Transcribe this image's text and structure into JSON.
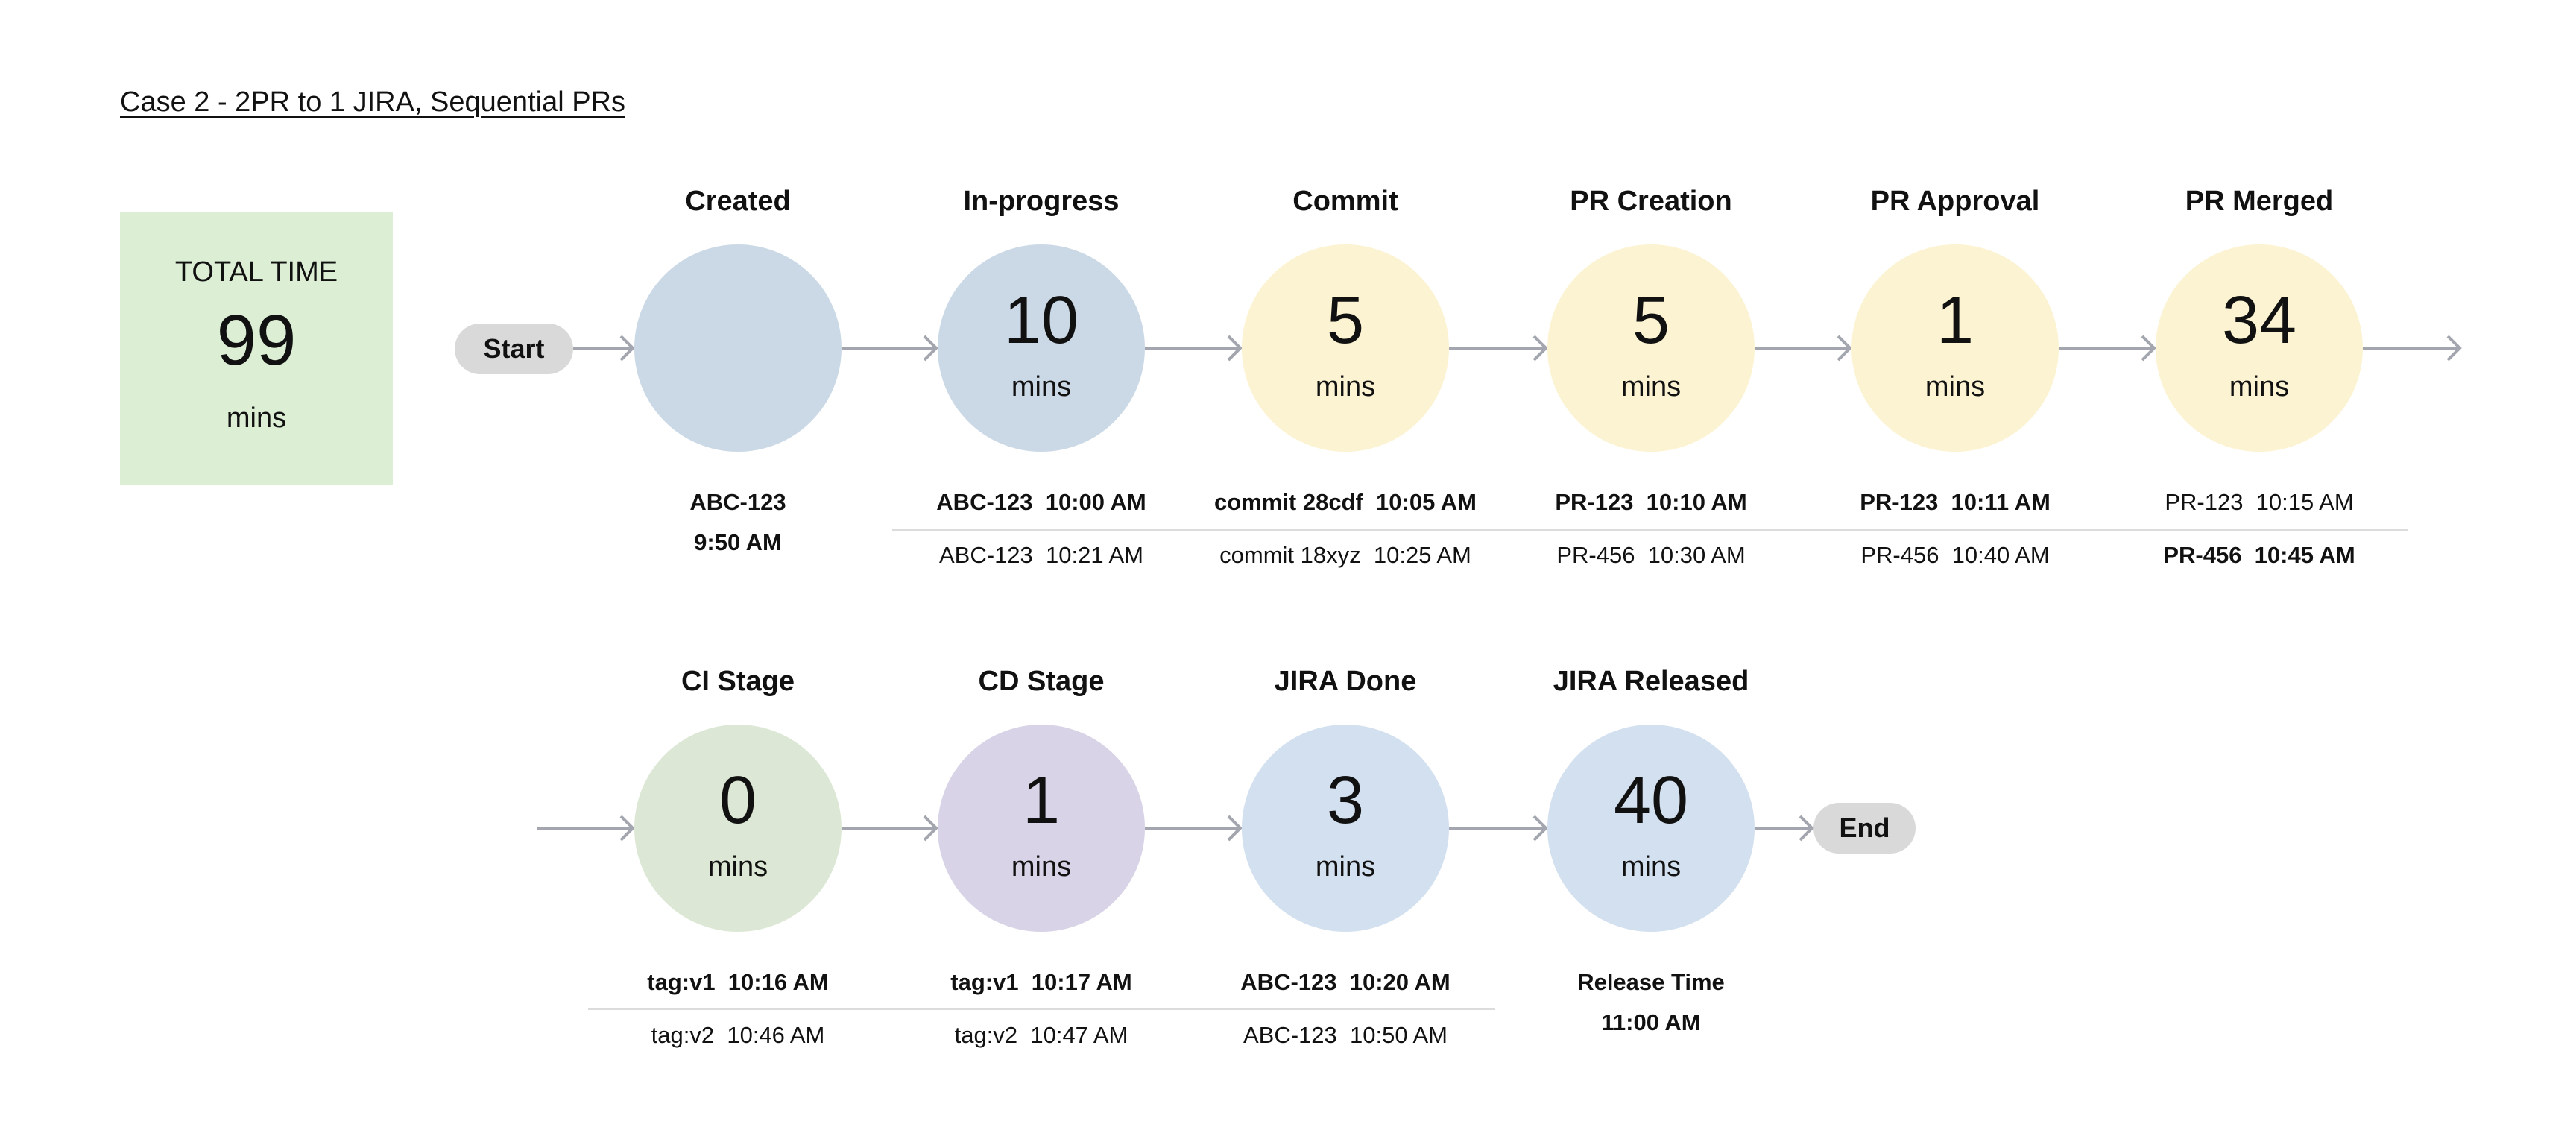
{
  "title": "Case 2 - 2PR to 1 JIRA, Sequential PRs",
  "total": {
    "label": "TOTAL TIME",
    "value": "99",
    "unit": "mins",
    "color": "#dcefd5"
  },
  "start_label": "Start",
  "end_label": "End",
  "colors": {
    "arrow": "#a3a6ae",
    "pill": "#d9d9d9",
    "separator": "#dcdcdc"
  },
  "stages": [
    {
      "title": "Created",
      "value": "",
      "unit": "",
      "color": "#cbd9e6",
      "details": [
        {
          "text": "ABC-123",
          "bold": true
        },
        {
          "text": "9:50 AM",
          "bold": true
        }
      ]
    },
    {
      "title": "In-progress",
      "value": "10",
      "unit": "mins",
      "color": "#cbd9e6",
      "details": [
        {
          "text": "ABC-123  10:00 AM",
          "bold": true
        },
        {
          "text": "ABC-123  10:21 AM",
          "bold": false
        }
      ]
    },
    {
      "title": "Commit",
      "value": "5",
      "unit": "mins",
      "color": "#fcf3d2",
      "details": [
        {
          "text": "commit 28cdf  10:05 AM",
          "bold": true
        },
        {
          "text": "commit 18xyz  10:25 AM",
          "bold": false
        }
      ]
    },
    {
      "title": "PR Creation",
      "value": "5",
      "unit": "mins",
      "color": "#fcf3d2",
      "details": [
        {
          "text": "PR-123  10:10 AM",
          "bold": true
        },
        {
          "text": "PR-456  10:30 AM",
          "bold": false
        }
      ]
    },
    {
      "title": "PR Approval",
      "value": "1",
      "unit": "mins",
      "color": "#fcf3d2",
      "details": [
        {
          "text": "PR-123  10:11 AM",
          "bold": true
        },
        {
          "text": "PR-456  10:40 AM",
          "bold": false
        }
      ]
    },
    {
      "title": "PR Merged",
      "value": "34",
      "unit": "mins",
      "color": "#fcf3d2",
      "details": [
        {
          "text": "PR-123  10:15 AM",
          "bold": false
        },
        {
          "text": "PR-456  10:45 AM",
          "bold": true
        }
      ]
    },
    {
      "title": "CI Stage",
      "value": "0",
      "unit": "mins",
      "color": "#dce8d5",
      "details": [
        {
          "text": "tag:v1  10:16 AM",
          "bold": true
        },
        {
          "text": "tag:v2  10:46 AM",
          "bold": false
        }
      ]
    },
    {
      "title": "CD Stage",
      "value": "1",
      "unit": "mins",
      "color": "#d8d3e6",
      "details": [
        {
          "text": "tag:v1  10:17 AM",
          "bold": true
        },
        {
          "text": "tag:v2  10:47 AM",
          "bold": false
        }
      ]
    },
    {
      "title": "JIRA Done",
      "value": "3",
      "unit": "mins",
      "color": "#d3e0ef",
      "details": [
        {
          "text": "ABC-123  10:20 AM",
          "bold": true
        },
        {
          "text": "ABC-123  10:50 AM",
          "bold": false
        }
      ]
    },
    {
      "title": "JIRA Released",
      "value": "40",
      "unit": "mins",
      "color": "#d3e0ef",
      "details": [
        {
          "text": "Release Time",
          "bold": true
        },
        {
          "text": "11:00 AM",
          "bold": true
        }
      ]
    }
  ]
}
